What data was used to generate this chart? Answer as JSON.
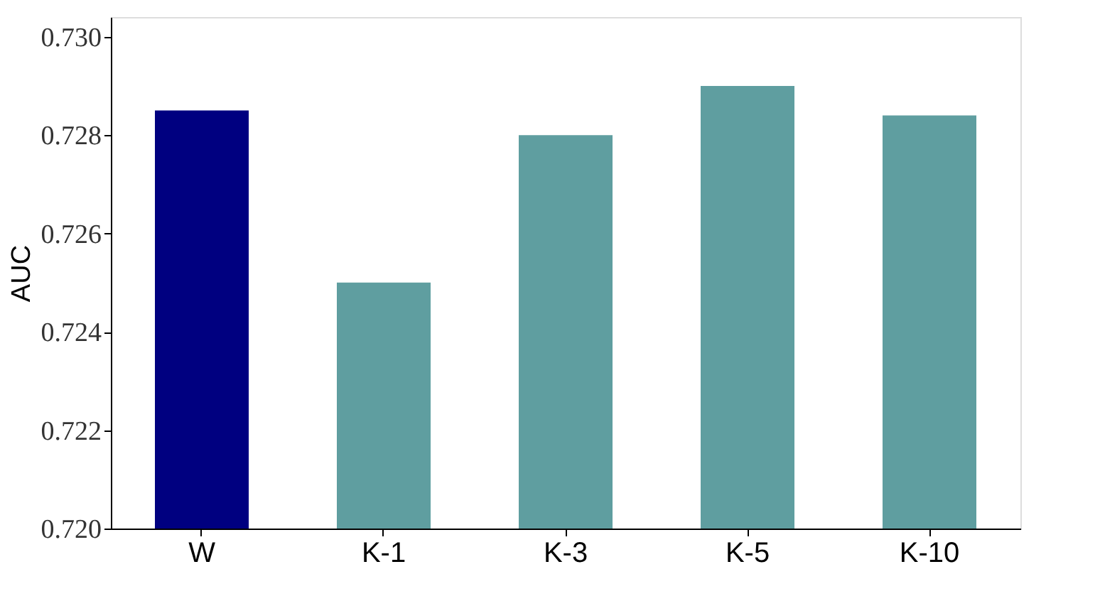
{
  "chart_data": {
    "type": "bar",
    "ylabel": "AUC",
    "categories": [
      "W",
      "K-1",
      "K-3",
      "K-5",
      "K-10"
    ],
    "values": [
      0.7285,
      0.725,
      0.728,
      0.729,
      0.7284
    ],
    "colors": [
      "#000080",
      "#5f9ea0",
      "#5f9ea0",
      "#5f9ea0",
      "#5f9ea0"
    ],
    "ylim": [
      0.72,
      0.7304
    ],
    "yticks": [
      {
        "value": 0.72,
        "label": "0.720"
      },
      {
        "value": 0.722,
        "label": "0.722"
      },
      {
        "value": 0.724,
        "label": "0.724"
      },
      {
        "value": 0.726,
        "label": "0.726"
      },
      {
        "value": 0.728,
        "label": "0.728"
      },
      {
        "value": 0.73,
        "label": "0.730"
      }
    ],
    "grid": false
  }
}
